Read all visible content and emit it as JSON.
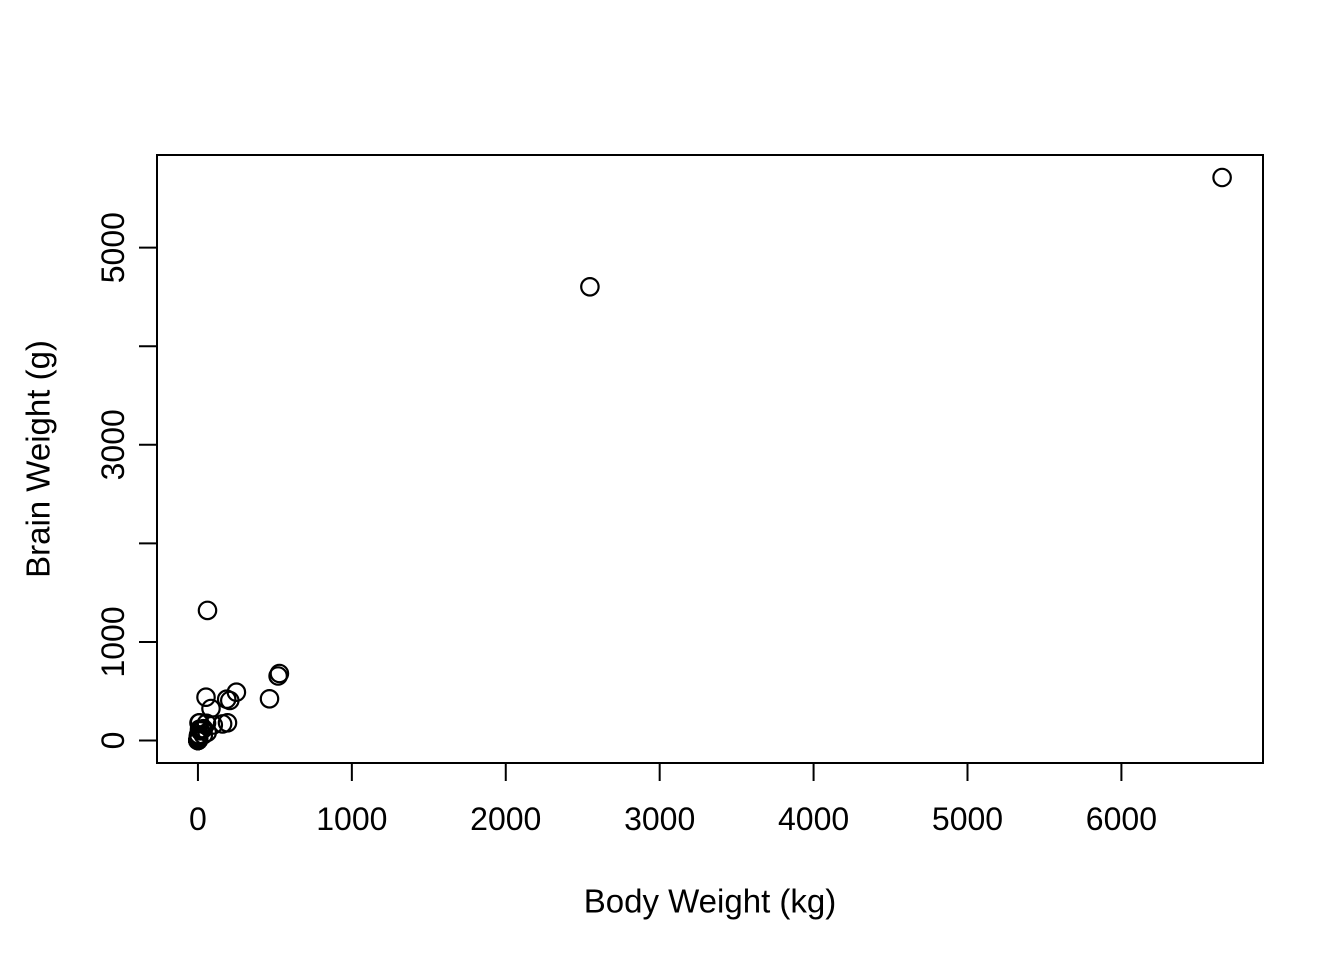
{
  "figure": {
    "background_color": "#ffffff",
    "foreground_color": "#000000"
  },
  "chart_data": {
    "type": "scatter",
    "title": "",
    "xlabel": "Body Weight (kg)",
    "ylabel": "Brain Weight (g)",
    "xlim": [
      -266,
      6920
    ],
    "ylim": [
      -228,
      5940
    ],
    "grid": false,
    "legend": false,
    "marker": {
      "shape": "open-circle",
      "color": "#000000"
    },
    "x_ticks": [
      {
        "value": 0,
        "label": "0"
      },
      {
        "value": 1000,
        "label": "1000"
      },
      {
        "value": 2000,
        "label": "2000"
      },
      {
        "value": 3000,
        "label": "3000"
      },
      {
        "value": 4000,
        "label": "4000"
      },
      {
        "value": 5000,
        "label": "5000"
      },
      {
        "value": 6000,
        "label": "6000"
      }
    ],
    "y_ticks": [
      {
        "value": 0,
        "label": "0"
      },
      {
        "value": 1000,
        "label": "1000"
      },
      {
        "value": 2000,
        "label": ""
      },
      {
        "value": 3000,
        "label": "3000"
      },
      {
        "value": 4000,
        "label": ""
      },
      {
        "value": 5000,
        "label": "5000"
      }
    ],
    "points": [
      [
        3.385,
        44.5
      ],
      [
        0.48,
        15.5
      ],
      [
        1.35,
        8.1
      ],
      [
        465,
        423
      ],
      [
        36.33,
        119.5
      ],
      [
        27.66,
        115
      ],
      [
        14.83,
        98.2
      ],
      [
        1.04,
        5.5
      ],
      [
        4.19,
        58
      ],
      [
        0.425,
        6.4
      ],
      [
        0.101,
        4
      ],
      [
        0.92,
        5.7
      ],
      [
        1,
        6.6
      ],
      [
        0.005,
        0.14
      ],
      [
        0.06,
        1
      ],
      [
        3.5,
        10.8
      ],
      [
        2,
        12.3
      ],
      [
        1.7,
        6.3
      ],
      [
        2547,
        4603
      ],
      [
        0.023,
        0.3
      ],
      [
        187.1,
        419
      ],
      [
        521,
        655
      ],
      [
        0.785,
        3.5
      ],
      [
        10,
        115
      ],
      [
        3.3,
        25.6
      ],
      [
        0.2,
        5
      ],
      [
        1.41,
        17.5
      ],
      [
        529,
        680
      ],
      [
        207,
        406
      ],
      [
        85,
        325
      ],
      [
        0.75,
        12.3
      ],
      [
        62,
        1320
      ],
      [
        6654,
        5712
      ],
      [
        3.5,
        3.9
      ],
      [
        6.8,
        179
      ],
      [
        35,
        56
      ],
      [
        4.05,
        17
      ],
      [
        0.12,
        1
      ],
      [
        0.023,
        0.4
      ],
      [
        0.01,
        0.25
      ],
      [
        1.4,
        12.5
      ],
      [
        250,
        490
      ],
      [
        2.5,
        12.1
      ],
      [
        55.5,
        175
      ],
      [
        100,
        157
      ],
      [
        52.16,
        440
      ],
      [
        10.55,
        179.5
      ],
      [
        0.55,
        2.4
      ],
      [
        60,
        81
      ],
      [
        3.6,
        21
      ],
      [
        4.288,
        39.2
      ],
      [
        0.28,
        1.9
      ],
      [
        0.075,
        1.2
      ],
      [
        0.122,
        3
      ],
      [
        0.048,
        0.33
      ],
      [
        192,
        180
      ],
      [
        3,
        25
      ],
      [
        160,
        169
      ],
      [
        0.9,
        2.6
      ],
      [
        1.62,
        11.4
      ],
      [
        0.104,
        2.5
      ],
      [
        4.235,
        50.4
      ]
    ]
  }
}
